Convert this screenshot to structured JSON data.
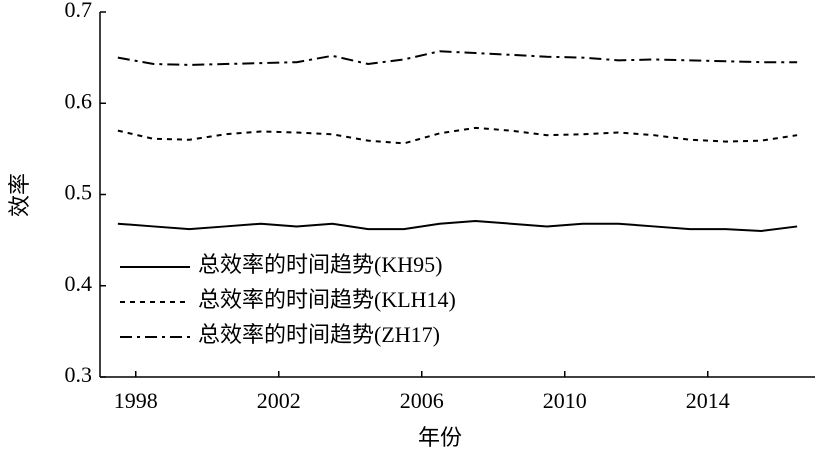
{
  "chart_data": {
    "type": "line",
    "x_label": "年份",
    "y_label": "效率",
    "x": [
      1997.5,
      1998.5,
      1999.5,
      2000.5,
      2001.5,
      2002.5,
      2003.5,
      2004.5,
      2005.5,
      2006.5,
      2007.5,
      2008.5,
      2009.5,
      2010.5,
      2011.5,
      2012.5,
      2013.5,
      2014.5,
      2015.5,
      2016.5
    ],
    "series": [
      {
        "name": "总效率的时间趋势(KH95)",
        "color": "#000000",
        "dash": "solid",
        "values": [
          0.468,
          0.465,
          0.462,
          0.465,
          0.468,
          0.465,
          0.468,
          0.462,
          0.462,
          0.468,
          0.471,
          0.468,
          0.465,
          0.468,
          0.468,
          0.465,
          0.462,
          0.462,
          0.46,
          0.465
        ]
      },
      {
        "name": "总效率的时间趋势(KLH14)",
        "color": "#000000",
        "dash": "dashed",
        "values": [
          0.57,
          0.561,
          0.56,
          0.566,
          0.569,
          0.568,
          0.566,
          0.559,
          0.556,
          0.567,
          0.573,
          0.57,
          0.565,
          0.566,
          0.568,
          0.565,
          0.56,
          0.558,
          0.559,
          0.565
        ]
      },
      {
        "name": "总效率的时间趋势(ZH17)",
        "color": "#000000",
        "dash": "dashdot",
        "values": [
          0.65,
          0.643,
          0.642,
          0.643,
          0.644,
          0.645,
          0.652,
          0.643,
          0.648,
          0.657,
          0.655,
          0.653,
          0.651,
          0.65,
          0.647,
          0.648,
          0.647,
          0.646,
          0.645,
          0.645
        ]
      }
    ],
    "xlim": [
      1997,
      2017
    ],
    "xticks": [
      1998,
      2002,
      2006,
      2010,
      2014
    ],
    "ylim": [
      0.3,
      0.7
    ],
    "yticks": [
      0.3,
      0.4,
      0.5,
      0.6,
      0.7
    ],
    "legend": "lower-left"
  }
}
